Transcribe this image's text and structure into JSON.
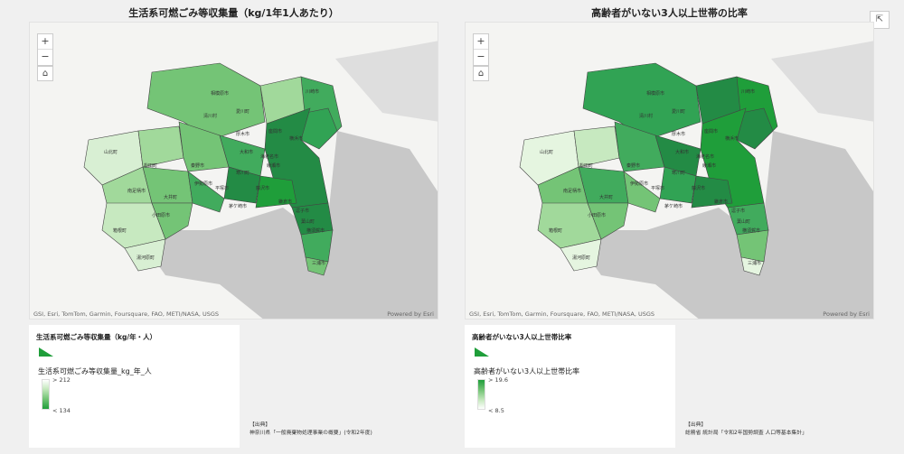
{
  "left": {
    "title": "生活系可燃ごみ等収集量（kg/1年1人あたり）",
    "zoom_in": "+",
    "zoom_out": "−",
    "home_icon": "⌂",
    "attribution": "GSI, Esri, TomTom, Garmin, Foursquare, FAO, METI/NASA, USGS",
    "powered": "Powered by Esri",
    "legend_title": "生活系可燃ごみ等収集量（kg/年・人）",
    "legend_field": "生活系可燃ごみ等収集量_kg_年_人",
    "legend_high": "> 212",
    "legend_low": "< 134",
    "source_label": "【出典】",
    "source_text": "神奈川県「一般廃棄物処理事業の概要」(令和2年度)"
  },
  "right": {
    "title": "高齢者がいない3人以上世帯の比率",
    "zoom_in": "+",
    "zoom_out": "−",
    "home_icon": "⌂",
    "attribution": "GSI, Esri, TomTom, Garmin, Foursquare, FAO, METI/NASA, USGS",
    "powered": "Powered by Esri",
    "legend_title": "高齢者がいない3人以上世帯比率",
    "legend_field": "高齢者がいない3人以上世帯比率",
    "legend_high": "> 19.6",
    "legend_low": "< 8.5",
    "source_label": "【出典】",
    "source_text": "総務省 統計局「令和2年国勢調査 人口等基本集計」"
  },
  "share_icon": "⇱",
  "colors": {
    "accent": "#1f9e3a",
    "light": "#d8efd3",
    "mid": "#74c476",
    "dark": "#238b45"
  },
  "map_labels_left": [
    "相模原市",
    "川崎市",
    "横浜市",
    "愛川町",
    "清川村",
    "厚木市",
    "海老名市",
    "大和市",
    "座間市",
    "綾瀬市",
    "山北町",
    "松田町",
    "秦野市",
    "伊勢原市",
    "平塚市",
    "藤沢市",
    "茅ケ崎市",
    "鎌倉市",
    "逗子市",
    "横須賀市",
    "三浦市",
    "南足柄市",
    "小田原市",
    "大井町",
    "箱根町",
    "湯河原町",
    "寒川町",
    "葉山町"
  ],
  "map_labels_right": [
    "相模原市",
    "川崎市",
    "横浜市",
    "愛川町",
    "清川村",
    "厚木市",
    "海老名市",
    "大和市",
    "座間市",
    "綾瀬市",
    "山北町",
    "松田町",
    "秦野市",
    "伊勢原市",
    "平塚市",
    "藤沢市",
    "茅ケ崎市",
    "鎌倉市",
    "逗子市",
    "横須賀市",
    "三浦市",
    "南足柄市",
    "小田原市",
    "大井町",
    "箱根町",
    "湯河原町",
    "寒川町",
    "葉山町"
  ]
}
